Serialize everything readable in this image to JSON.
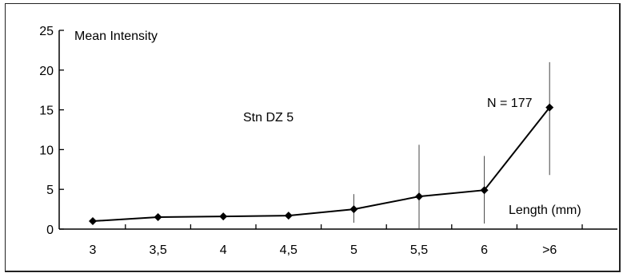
{
  "chart_data": {
    "type": "line",
    "title": "Stn DZ 5",
    "annotation": "N = 177",
    "ylabel": "Mean Intensity",
    "xlabel": "Length (mm)",
    "categories": [
      "3",
      "3,5",
      "4",
      "4,5",
      "5",
      "5,5",
      "6",
      ">6"
    ],
    "series": [
      {
        "values": [
          1.0,
          1.5,
          1.6,
          1.7,
          2.5,
          4.1,
          4.9,
          15.3
        ],
        "error_low": [
          1.0,
          1.5,
          1.6,
          1.7,
          0.8,
          0.0,
          0.7,
          6.8
        ],
        "error_high": [
          1.0,
          1.5,
          1.6,
          1.7,
          4.4,
          10.6,
          9.2,
          21.0
        ]
      }
    ],
    "ylim": [
      0,
      25
    ],
    "yticks": [
      "0",
      "5",
      "10",
      "15",
      "20",
      "25"
    ],
    "grid": false,
    "marker": "diamond",
    "line_color": "#000000",
    "marker_color": "#000000"
  }
}
